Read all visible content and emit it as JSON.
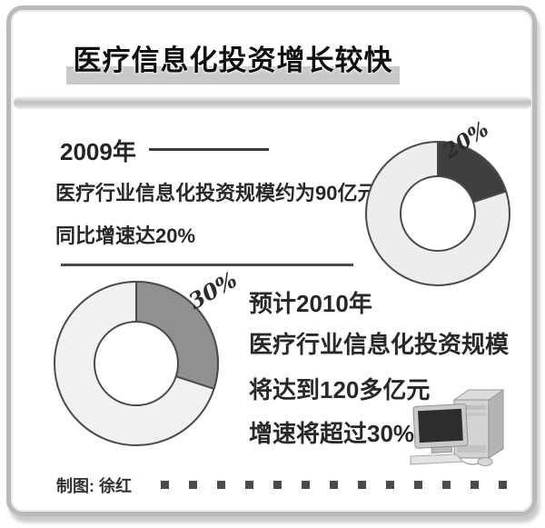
{
  "title": "医疗信息化投资增长较快",
  "section_2009": {
    "year_label": "2009年",
    "line1": "医疗行业信息化投资规模约为90亿元",
    "line2": "同比增速达20%"
  },
  "section_2010": {
    "line1": "预计2010年",
    "line2": "医疗行业信息化投资规模",
    "line3": "将达到120多亿元",
    "line4": "增速将超过30%"
  },
  "credit": "制图: 徐红",
  "colors": {
    "title_highlight_bar": "#c9c9c9",
    "divider_band": "#c2c2c2",
    "frame_border": "#b7b9bb",
    "text": "#282828",
    "rule": "#4a4a4a"
  },
  "chart_data": [
    {
      "type": "pie",
      "subtype": "donut",
      "label": "20%",
      "values": [
        20,
        80
      ],
      "colors": [
        "#3f3f3f",
        "#ededed"
      ],
      "outline": "#4a4a4a",
      "hole_fill": "#ffffff",
      "start_angle_deg": 0,
      "direction": "clockwise",
      "legend": "off"
    },
    {
      "type": "pie",
      "subtype": "donut",
      "label": "30%",
      "values": [
        30,
        70
      ],
      "colors": [
        "#8f9092",
        "#f1f1f1"
      ],
      "outline": "#4a4a4a",
      "hole_fill": "#ffffff",
      "start_angle_deg": 0,
      "direction": "clockwise",
      "legend": "off"
    }
  ]
}
